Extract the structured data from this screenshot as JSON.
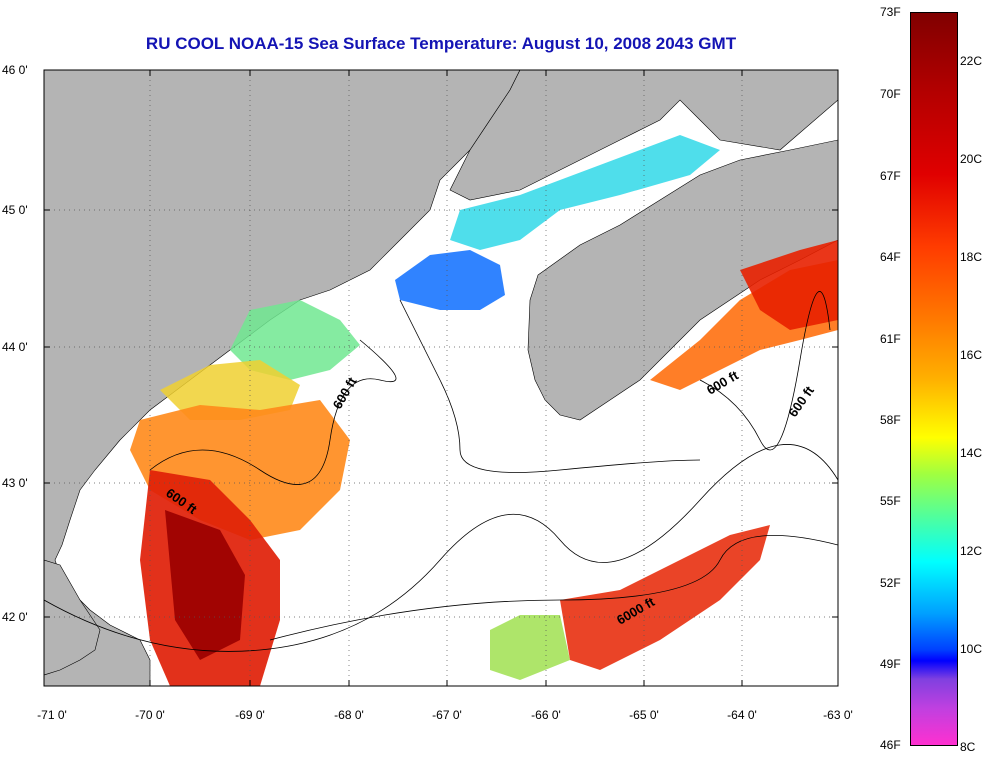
{
  "title": "RU COOL  NOAA-15  Sea Surface Temperature:  August 10, 2008 2043 GMT",
  "latitude_labels": [
    "46 0'",
    "45 0'",
    "44 0'",
    "43 0'",
    "42 0'"
  ],
  "longitude_labels": [
    "-71 0'",
    "-70 0'",
    "-69 0'",
    "-68 0'",
    "-67 0'",
    "-66 0'",
    "-65 0'",
    "-64 0'",
    "-63 0'"
  ],
  "contour_labels": [
    "600 ft",
    "600 ft",
    "600 ft",
    "600 ft",
    "6000 ft"
  ],
  "colorbar": {
    "fahrenheit_labels": [
      "73F",
      "70F",
      "67F",
      "64F",
      "61F",
      "58F",
      "55F",
      "52F",
      "49F",
      "46F"
    ],
    "celsius_labels": [
      "22C",
      "20C",
      "18C",
      "16C",
      "14C",
      "12C",
      "10C",
      "8C"
    ]
  },
  "colors": {
    "land": "#b4b4b4",
    "title": "#1414b4",
    "no_data": "#ffffff"
  }
}
